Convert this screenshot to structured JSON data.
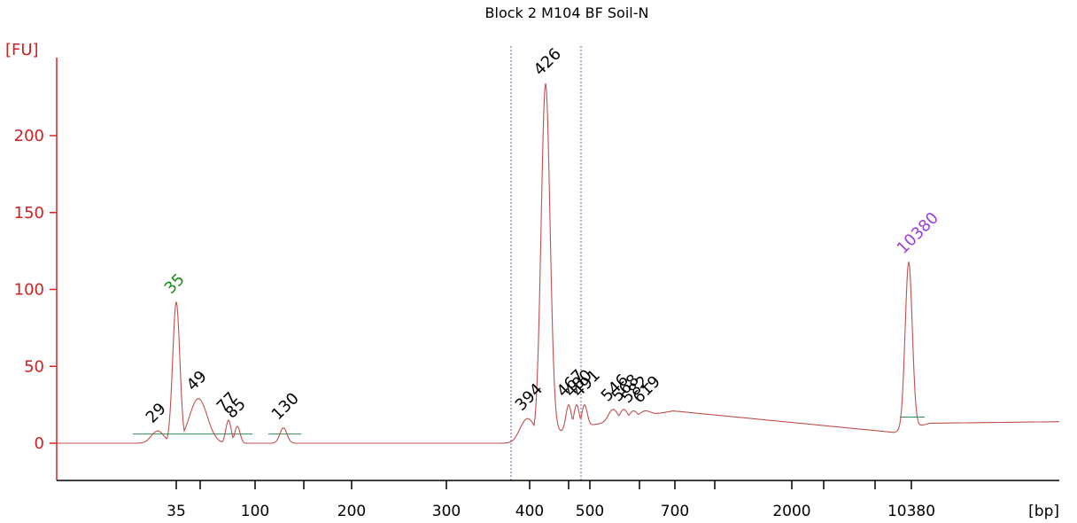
{
  "chart_data": {
    "type": "line",
    "title": "Block 2 M104 BF Soil-N",
    "ylabel": "[FU]",
    "xlabel": "[bp]",
    "ylim": [
      -22,
      252
    ],
    "yticks": [
      0,
      50,
      100,
      150,
      200
    ],
    "xticks": [
      "35",
      "100",
      "200",
      "300",
      "400",
      "500",
      "700",
      "2000",
      "10380"
    ],
    "colors": {
      "axis": "#e02020",
      "trace": "#c0504d",
      "markers": "#7060a0",
      "baseline": "#2e8b57"
    },
    "peak_labels": [
      {
        "label": "35",
        "x": "35",
        "fu": 92,
        "color": "#1a8a1a"
      },
      {
        "label": "10380",
        "x": "10380",
        "fu": 118,
        "color": "#9b3fd8"
      },
      {
        "label": "29",
        "fu": 8,
        "color": "#000000"
      },
      {
        "label": "49",
        "fu": 29,
        "color": "#000000"
      },
      {
        "label": "77",
        "fu": 15,
        "color": "#000000"
      },
      {
        "label": "85",
        "fu": 11,
        "color": "#000000"
      },
      {
        "label": "130",
        "fu": 10,
        "color": "#000000"
      },
      {
        "label": "394",
        "fu": 16,
        "color": "#000000"
      },
      {
        "label": "426",
        "fu": 234,
        "color": "#000000"
      },
      {
        "label": "467",
        "fu": 25,
        "color": "#000000"
      },
      {
        "label": "480",
        "fu": 25,
        "color": "#000000"
      },
      {
        "label": "491",
        "fu": 25,
        "color": "#000000"
      },
      {
        "label": "546",
        "fu": 22,
        "color": "#000000"
      },
      {
        "label": "568",
        "fu": 22,
        "color": "#000000"
      },
      {
        "label": "582",
        "fu": 21,
        "color": "#000000"
      },
      {
        "label": "619",
        "fu": 21,
        "color": "#000000"
      }
    ]
  }
}
